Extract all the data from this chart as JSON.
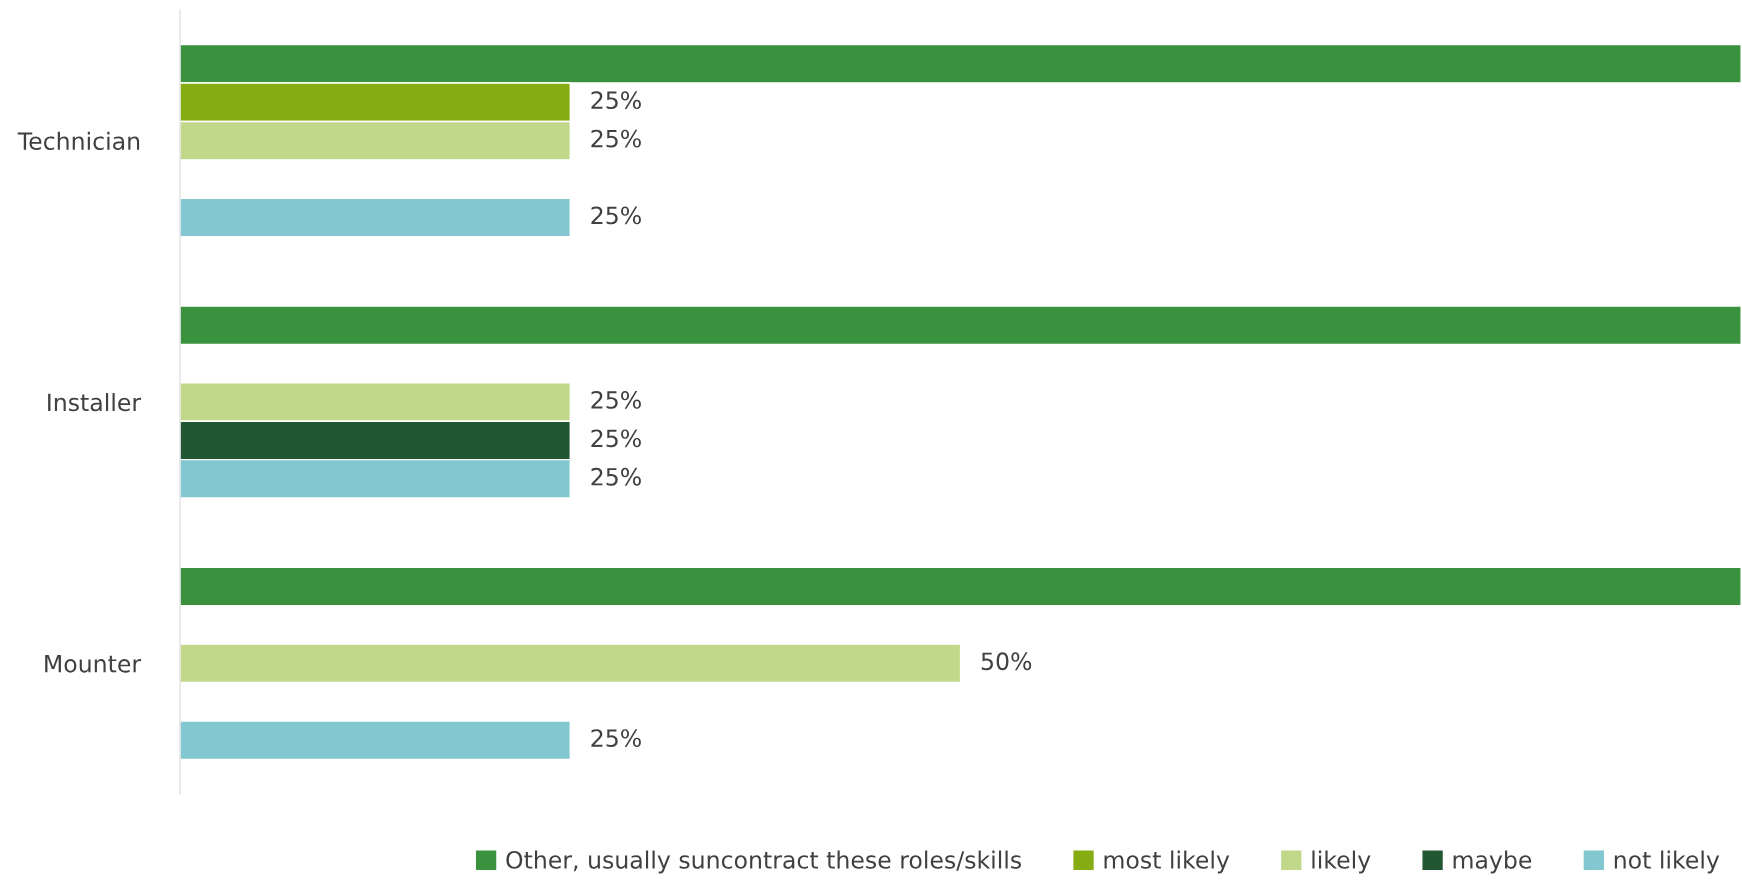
{
  "chart_data": {
    "type": "bar",
    "orientation": "horizontal",
    "categories": [
      "Technician",
      "Installer",
      "Mounter"
    ],
    "xlim": [
      0,
      100
    ],
    "tick_labels": "y",
    "grid": false,
    "legend": "bottom",
    "series": [
      {
        "name": "Other, usually suncontract these roles/skills",
        "color": "#3a923f",
        "values": [
          100,
          100,
          100
        ],
        "value_labels": [
          null,
          null,
          null
        ]
      },
      {
        "name": "most likely",
        "color": "#86ac14",
        "values": [
          25,
          null,
          null
        ],
        "value_labels": [
          "25%",
          null,
          null
        ]
      },
      {
        "name": "likely",
        "color": "#c1d88b",
        "values": [
          25,
          25,
          50
        ],
        "value_labels": [
          "25%",
          "25%",
          "50%"
        ]
      },
      {
        "name": "maybe",
        "color": "#215732",
        "values": [
          null,
          25,
          null
        ],
        "value_labels": [
          null,
          "25%",
          null
        ]
      },
      {
        "name": "not likely",
        "color": "#83c8d0",
        "values": [
          25,
          25,
          25
        ],
        "value_labels": [
          "25%",
          "25%",
          "25%"
        ]
      }
    ]
  }
}
